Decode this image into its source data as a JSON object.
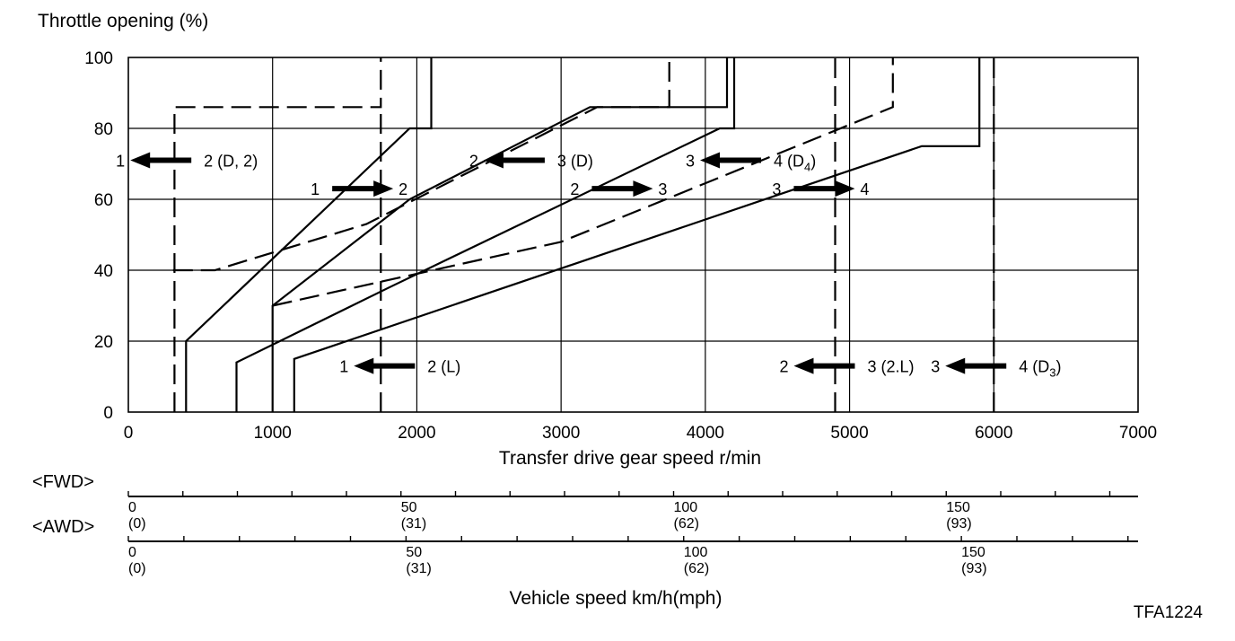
{
  "chart_data": {
    "type": "line",
    "title": "",
    "ylabel": "Throttle opening (%)",
    "xlabel": "Transfer drive gear speed r/min",
    "xlim": [
      0,
      7000
    ],
    "ylim": [
      0,
      100
    ],
    "x_ticks": [
      "0",
      "1000",
      "2000",
      "3000",
      "4000",
      "5000",
      "6000",
      "7000"
    ],
    "y_ticks": [
      "0",
      "20",
      "40",
      "60",
      "80",
      "100"
    ],
    "grid": true,
    "series": [
      {
        "style": "dashed",
        "points": [
          [
            320,
            0
          ],
          [
            320,
            86
          ],
          [
            1750,
            86
          ],
          [
            1750,
            100
          ]
        ]
      },
      {
        "style": "solid",
        "points": [
          [
            400,
            0
          ],
          [
            400,
            20
          ],
          [
            1950,
            80
          ],
          [
            2100,
            80
          ],
          [
            2100,
            100
          ]
        ]
      },
      {
        "style": "dashed",
        "points": [
          [
            310,
            40
          ],
          [
            600,
            40
          ],
          [
            1650,
            53
          ],
          [
            3250,
            86
          ],
          [
            3750,
            86
          ],
          [
            3750,
            100
          ]
        ]
      },
      {
        "style": "solid",
        "points": [
          [
            1000,
            0
          ],
          [
            1000,
            30
          ],
          [
            1950,
            60
          ],
          [
            3200,
            86
          ],
          [
            4150,
            86
          ],
          [
            4150,
            100
          ]
        ]
      },
      {
        "style": "solid",
        "points": [
          [
            750,
            0
          ],
          [
            750,
            14
          ],
          [
            1800,
            35
          ],
          [
            4100,
            80
          ],
          [
            4200,
            80
          ],
          [
            4200,
            100
          ]
        ]
      },
      {
        "style": "dashed",
        "points": [
          [
            1750,
            0
          ],
          [
            1750,
            86
          ]
        ]
      },
      {
        "style": "dashed",
        "points": [
          [
            1000,
            30
          ],
          [
            3000,
            48
          ],
          [
            5300,
            86
          ],
          [
            5300,
            100
          ]
        ]
      },
      {
        "style": "solid",
        "points": [
          [
            1150,
            0
          ],
          [
            1150,
            15
          ],
          [
            5500,
            75
          ],
          [
            5900,
            75
          ],
          [
            5900,
            100
          ]
        ]
      },
      {
        "style": "dashed",
        "points": [
          [
            4900,
            0
          ],
          [
            4900,
            100
          ]
        ]
      },
      {
        "style": "dashed",
        "points": [
          [
            6000,
            0
          ],
          [
            6000,
            100
          ]
        ]
      }
    ],
    "annotations": [
      {
        "text_left": "1",
        "text_right": "2 (D, 2)",
        "direction": "left",
        "x": 250,
        "y": 71
      },
      {
        "text_left": "1",
        "text_right": "2",
        "direction": "right",
        "x": 1600,
        "y": 63
      },
      {
        "text_left": "2",
        "text_right": "3 (D)",
        "direction": "left",
        "x": 2700,
        "y": 71
      },
      {
        "text_left": "2",
        "text_right": "3",
        "direction": "right",
        "x": 3400,
        "y": 63
      },
      {
        "text_left": "3",
        "text_right": "4 (D",
        "sub": "4",
        "text_close": ")",
        "direction": "left",
        "x": 4200,
        "y": 71
      },
      {
        "text_left": "3",
        "text_right": "4",
        "direction": "right",
        "x": 4800,
        "y": 63
      },
      {
        "text_left": "1",
        "text_right": "2 (L)",
        "direction": "left",
        "x": 1800,
        "y": 13
      },
      {
        "text_left": "2",
        "text_right": "3 (2.L)",
        "direction": "left",
        "x": 4850,
        "y": 13
      },
      {
        "text_left": "3",
        "text_right": "4 (D",
        "sub": "3",
        "text_close": ")",
        "direction": "left",
        "x": 5900,
        "y": 13
      }
    ],
    "secondary_axes": [
      {
        "name": "<FWD>",
        "km_ticks": [
          "0",
          "50",
          "100",
          "150"
        ],
        "mph_ticks": [
          "(0)",
          "(31)",
          "(62)",
          "(93)"
        ],
        "rpm_per_kmh": 37.8
      },
      {
        "name": "<AWD>",
        "km_ticks": [
          "0",
          "50",
          "100",
          "150"
        ],
        "mph_ticks": [
          "(0)",
          "(31)",
          "(62)",
          "(93)"
        ],
        "rpm_per_kmh": 38.5
      }
    ],
    "secondary_xlabel": "Vehicle speed km/h(mph)"
  },
  "figure_code": "TFA1224"
}
